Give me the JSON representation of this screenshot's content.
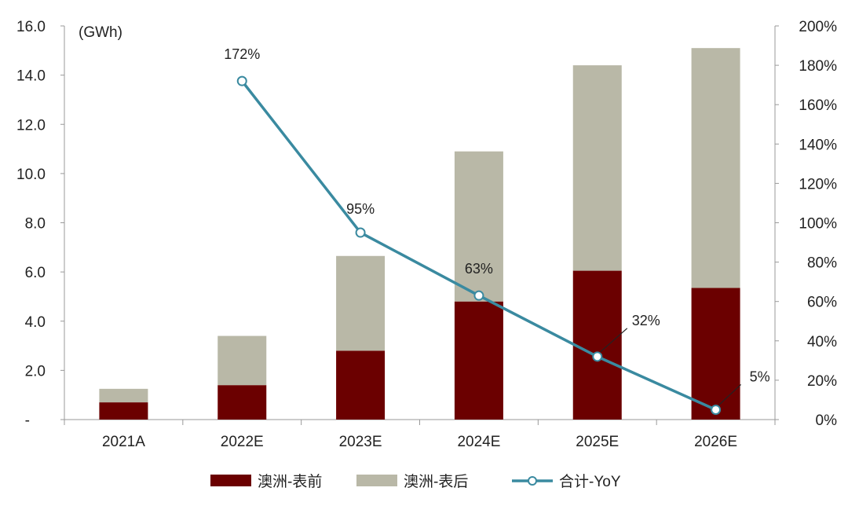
{
  "chart_data": {
    "type": "bar",
    "stacked": true,
    "unit_label": "(GWh)",
    "categories": [
      "2021A",
      "2022E",
      "2023E",
      "2024E",
      "2025E",
      "2026E"
    ],
    "series": [
      {
        "name": "澳洲-表前",
        "type": "bar",
        "axis": "left",
        "color": "#6b0000",
        "values": [
          0.7,
          1.4,
          2.8,
          4.8,
          6.05,
          5.35
        ]
      },
      {
        "name": "澳洲-表后",
        "type": "bar",
        "axis": "left",
        "color": "#b9b8a7",
        "values": [
          0.55,
          2.0,
          3.85,
          6.1,
          8.35,
          9.75
        ]
      },
      {
        "name": "合计-YoY",
        "type": "line",
        "axis": "right",
        "color": "#3a8aa0",
        "values": [
          null,
          1.72,
          0.95,
          0.63,
          0.32,
          0.05
        ],
        "labels": [
          null,
          "172%",
          "95%",
          "63%",
          "32%",
          "5%"
        ]
      }
    ],
    "y_left": {
      "min": 0,
      "max": 16,
      "ticks": [
        "-",
        "2.0",
        "4.0",
        "6.0",
        "8.0",
        "10.0",
        "12.0",
        "14.0",
        "16.0"
      ]
    },
    "y_right": {
      "min": 0,
      "max": 2,
      "ticks": [
        "0%",
        "20%",
        "40%",
        "60%",
        "80%",
        "100%",
        "120%",
        "140%",
        "160%",
        "180%",
        "200%"
      ]
    },
    "grid": false,
    "legend_position": "bottom"
  }
}
